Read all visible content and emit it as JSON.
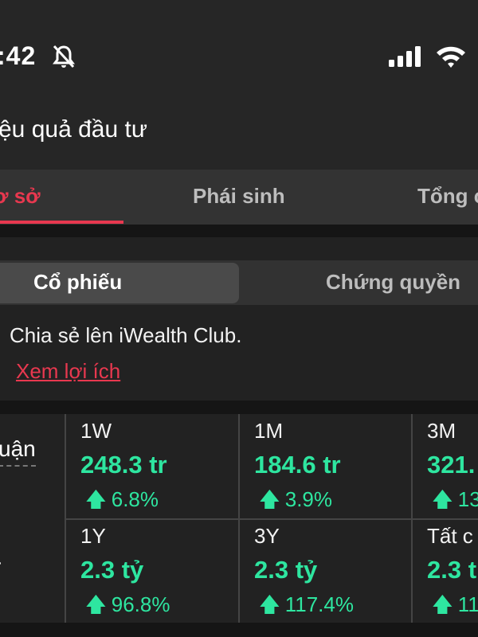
{
  "status_bar": {
    "time": ":42",
    "icons": [
      "bell-muted-icon",
      "signal-icon",
      "wifi-icon"
    ]
  },
  "header": {
    "title": "ệu quả đầu tư"
  },
  "tabs": [
    {
      "label": "ơ sở",
      "active": true
    },
    {
      "label": "Phái sinh"
    },
    {
      "label": "Tổng c"
    }
  ],
  "segment": {
    "options": [
      "Cổ phiếu",
      "Chứng quyền"
    ],
    "selected": "Cổ phiếu"
  },
  "share": {
    "text": "Chia sẻ lên iWealth Club.",
    "link": "Xem lợi ích"
  },
  "metrics": {
    "row_labels": [
      "uận",
      "r"
    ],
    "cells": [
      {
        "period": "1W",
        "value": "248.3 tr",
        "change": "6.8%"
      },
      {
        "period": "1M",
        "value": "184.6 tr",
        "change": "3.9%"
      },
      {
        "period": "3M",
        "value": "321.",
        "change": "13"
      },
      {
        "period": "1Y",
        "value": "2.3 tỷ",
        "change": "96.8%"
      },
      {
        "period": "3Y",
        "value": "2.3 tỷ",
        "change": "117.4%"
      },
      {
        "period": "Tất c",
        "value": "2.3 t",
        "change": "11"
      }
    ]
  },
  "colors": {
    "accent": "#e8384f",
    "positive": "#2ee6a0"
  }
}
